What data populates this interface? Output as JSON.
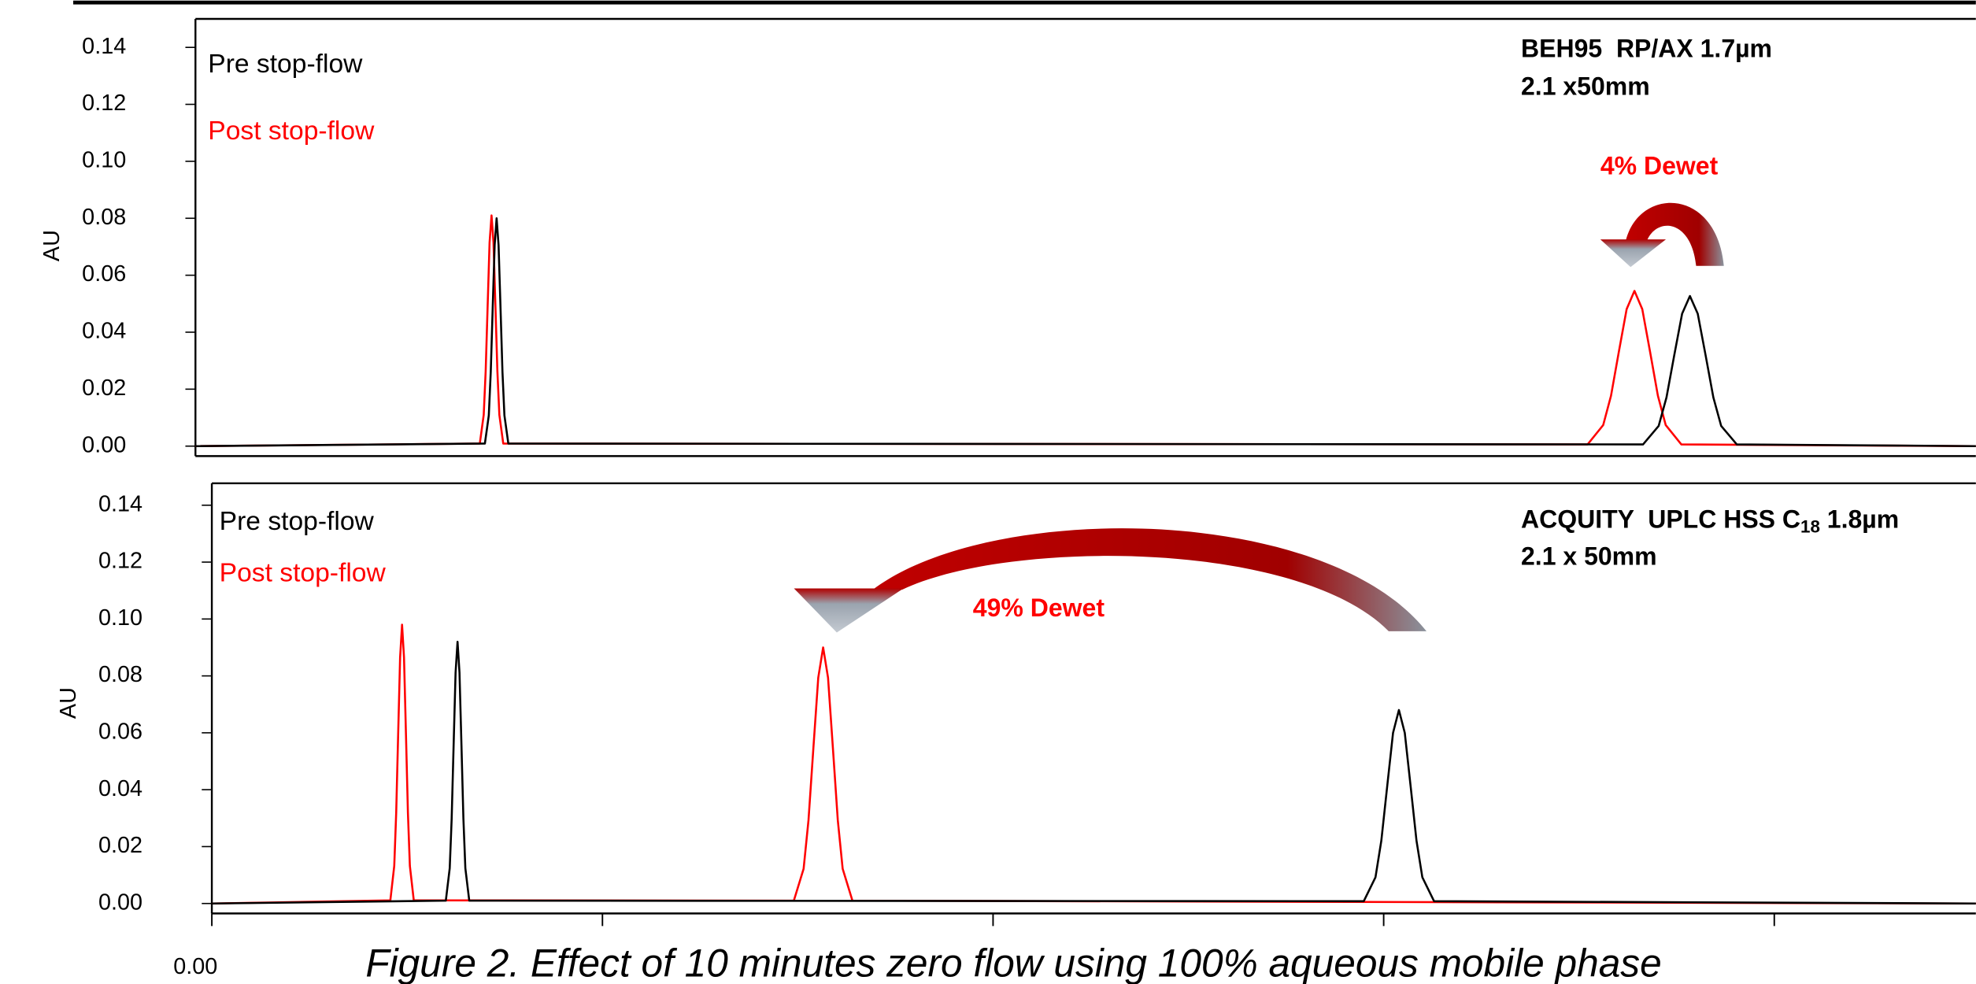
{
  "caption": "Figure 2. Effect of 10 minutes zero flow using 100% aqueous mobile phase",
  "chart_data": [
    {
      "type": "line",
      "ylabel": "AU",
      "xlim": [
        0,
        4.558
      ],
      "ylim": [
        -0.0035,
        0.15
      ],
      "yticks": [
        {
          "value": 0,
          "label": "0.00"
        },
        {
          "value": 0.02,
          "label": "0.02"
        },
        {
          "value": 0.04,
          "label": "0.04"
        },
        {
          "value": 0.06,
          "label": "0.06"
        },
        {
          "value": 0.08,
          "label": "0.08"
        },
        {
          "value": 0.1,
          "label": "0.10"
        },
        {
          "value": 0.12,
          "label": "0.12"
        },
        {
          "value": 0.14,
          "label": "0.14"
        }
      ],
      "series": [
        {
          "name": "Pre stop-flow",
          "color": "#000000",
          "x": [
            0,
            0.741,
            0.751,
            0.756,
            0.761,
            0.766,
            0.771,
            0.776,
            0.781,
            0.786,
            0.791,
            0.801,
            3.706,
            3.746,
            3.766,
            3.786,
            3.806,
            3.826,
            3.846,
            3.866,
            3.886,
            3.906,
            3.946,
            4.558
          ],
          "values": [
            0,
            0.0009,
            0.0108,
            0.026,
            0.0486,
            0.0706,
            0.08,
            0.0706,
            0.0486,
            0.026,
            0.0108,
            0.0009,
            0.0006,
            0.0071,
            0.0171,
            0.032,
            0.0465,
            0.0527,
            0.0465,
            0.032,
            0.0171,
            0.0071,
            0.0006,
            0
          ]
        },
        {
          "name": "Post stop-flow",
          "color": "#ff0000",
          "x": [
            0,
            0.728,
            0.738,
            0.743,
            0.748,
            0.753,
            0.758,
            0.763,
            0.768,
            0.773,
            0.778,
            0.788,
            3.564,
            3.604,
            3.624,
            3.644,
            3.664,
            3.684,
            3.704,
            3.724,
            3.744,
            3.764,
            3.804,
            4.558
          ],
          "values": [
            0,
            0.0009,
            0.011,
            0.0263,
            0.0491,
            0.0715,
            0.081,
            0.0715,
            0.0491,
            0.0263,
            0.011,
            0.0009,
            0.0006,
            0.0074,
            0.0177,
            0.0331,
            0.0481,
            0.0545,
            0.0481,
            0.0331,
            0.0177,
            0.0074,
            0.0006,
            0
          ]
        }
      ],
      "annotations": [
        "BEH95  RP/AX 1.7µm",
        "2.1 x50mm",
        "4% Dewet"
      ]
    },
    {
      "type": "line",
      "ylabel": "AU",
      "xlim": [
        0,
        4.516
      ],
      "ylim": [
        -0.0035,
        0.1477
      ],
      "xticks": [
        {
          "value": 0,
          "label": "0.00"
        },
        {
          "value": 1,
          "label": null
        },
        {
          "value": 2,
          "label": null
        },
        {
          "value": 3,
          "label": null
        },
        {
          "value": 4,
          "label": null
        }
      ],
      "yticks": [
        {
          "value": 0,
          "label": "0.00"
        },
        {
          "value": 0.02,
          "label": "0.02"
        },
        {
          "value": 0.04,
          "label": "0.04"
        },
        {
          "value": 0.06,
          "label": "0.06"
        },
        {
          "value": 0.08,
          "label": "0.08"
        },
        {
          "value": 0.1,
          "label": "0.10"
        },
        {
          "value": 0.12,
          "label": "0.12"
        },
        {
          "value": 0.14,
          "label": "0.14"
        }
      ],
      "series": [
        {
          "name": "Pre stop-flow",
          "color": "#000000",
          "x": [
            0,
            0.599,
            0.609,
            0.614,
            0.619,
            0.624,
            0.629,
            0.634,
            0.639,
            0.644,
            0.649,
            0.659,
            2.949,
            2.979,
            2.994,
            3.009,
            3.024,
            3.039,
            3.054,
            3.069,
            3.084,
            3.099,
            3.129,
            4.516
          ],
          "values": [
            0,
            0.001,
            0.0124,
            0.0299,
            0.0558,
            0.0812,
            0.092,
            0.0812,
            0.0558,
            0.0299,
            0.0124,
            0.001,
            0.0008,
            0.0092,
            0.0221,
            0.0412,
            0.06,
            0.068,
            0.06,
            0.0412,
            0.0221,
            0.0092,
            0.0008,
            0
          ]
        },
        {
          "name": "Post stop-flow",
          "color": "#ff0000",
          "x": [
            0,
            0.457,
            0.467,
            0.472,
            0.477,
            0.482,
            0.487,
            0.492,
            0.497,
            0.502,
            0.507,
            0.517,
            1.49,
            1.515,
            1.5275,
            1.54,
            1.5525,
            1.565,
            1.5775,
            1.59,
            1.6025,
            1.615,
            1.64,
            4.516
          ],
          "values": [
            0,
            0.0011,
            0.0132,
            0.0319,
            0.0594,
            0.0865,
            0.098,
            0.0865,
            0.0594,
            0.0319,
            0.0132,
            0.0011,
            0.001,
            0.0122,
            0.0293,
            0.0546,
            0.0794,
            0.09,
            0.0794,
            0.0546,
            0.0293,
            0.0122,
            0.001,
            0
          ]
        }
      ],
      "annotations": [
        "ACQUITY  UPLC HSS C",
        "18",
        " 1.8µm",
        "2.1 x 50mm",
        "49% Dewet"
      ]
    }
  ]
}
